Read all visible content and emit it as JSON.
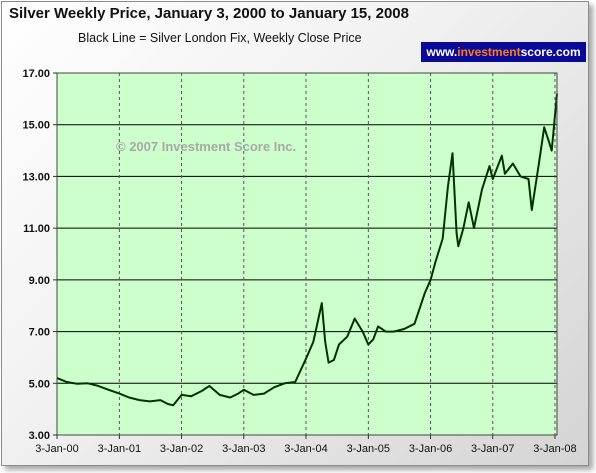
{
  "chart_data": {
    "type": "line",
    "title": "Silver Weekly Price, January 3, 2000 to January 15, 2008",
    "subtitle": "Black Line = Silver London Fix, Weekly Close Price",
    "brand": {
      "before": "www.",
      "accent": "investment",
      "after": "score.com"
    },
    "watermark": "© 2007 Investment Score Inc.",
    "xlabel": "",
    "ylabel": "",
    "ylim": [
      3,
      17
    ],
    "xlim": [
      "2000-01-03",
      "2008-01-15"
    ],
    "yticks": [
      "3.00",
      "5.00",
      "7.00",
      "9.00",
      "11.00",
      "13.00",
      "15.00",
      "17.00"
    ],
    "xticks": [
      "3-Jan-00",
      "3-Jan-01",
      "3-Jan-02",
      "3-Jan-03",
      "3-Jan-04",
      "3-Jan-05",
      "3-Jan-06",
      "3-Jan-07",
      "3-Jan-08"
    ],
    "grid": true,
    "colors": {
      "plot_bg": "#ccffcc",
      "line": "#003300",
      "grid": "#000000",
      "brand_bg": "#0a0a96",
      "brand_accent": "#ff7a1a"
    },
    "series": [
      {
        "name": "Silver London Fix, Weekly Close Price",
        "x": [
          "2000-01-03",
          "2000-03-01",
          "2000-05-01",
          "2000-07-01",
          "2000-09-01",
          "2000-11-01",
          "2001-01-03",
          "2001-03-01",
          "2001-05-01",
          "2001-07-01",
          "2001-09-01",
          "2001-10-15",
          "2001-11-15",
          "2002-01-03",
          "2002-03-01",
          "2002-05-01",
          "2002-06-15",
          "2002-08-15",
          "2002-10-15",
          "2002-12-01",
          "2003-01-03",
          "2003-03-01",
          "2003-05-01",
          "2003-07-01",
          "2003-09-01",
          "2003-11-01",
          "2004-01-03",
          "2004-02-15",
          "2004-04-05",
          "2004-04-25",
          "2004-05-15",
          "2004-06-15",
          "2004-07-15",
          "2004-09-01",
          "2004-10-15",
          "2004-12-01",
          "2005-01-03",
          "2005-02-01",
          "2005-03-01",
          "2005-04-15",
          "2005-06-01",
          "2005-08-01",
          "2005-10-01",
          "2005-12-01",
          "2006-01-03",
          "2006-02-01",
          "2006-03-15",
          "2006-04-15",
          "2006-05-12",
          "2006-06-05",
          "2006-06-15",
          "2006-07-15",
          "2006-08-15",
          "2006-09-15",
          "2006-11-01",
          "2006-12-15",
          "2007-01-03",
          "2007-02-25",
          "2007-03-15",
          "2007-05-01",
          "2007-06-15",
          "2007-08-01",
          "2007-08-20",
          "2007-10-01",
          "2007-11-01",
          "2007-12-01",
          "2007-12-15",
          "2008-01-15"
        ],
        "values": [
          5.2,
          5.05,
          4.98,
          5.0,
          4.9,
          4.75,
          4.6,
          4.45,
          4.35,
          4.3,
          4.35,
          4.2,
          4.15,
          4.55,
          4.5,
          4.7,
          4.9,
          4.55,
          4.45,
          4.6,
          4.75,
          4.55,
          4.6,
          4.85,
          5.0,
          5.05,
          5.95,
          6.6,
          8.1,
          6.6,
          5.8,
          5.9,
          6.5,
          6.8,
          7.5,
          7.0,
          6.5,
          6.7,
          7.2,
          7.0,
          7.0,
          7.1,
          7.3,
          8.5,
          9.0,
          9.7,
          10.6,
          12.6,
          13.9,
          10.8,
          10.3,
          11.0,
          12.0,
          11.0,
          12.5,
          13.4,
          12.9,
          13.8,
          13.1,
          13.5,
          13.0,
          12.9,
          11.7,
          13.5,
          14.9,
          14.3,
          14.0,
          16.2
        ]
      }
    ]
  }
}
